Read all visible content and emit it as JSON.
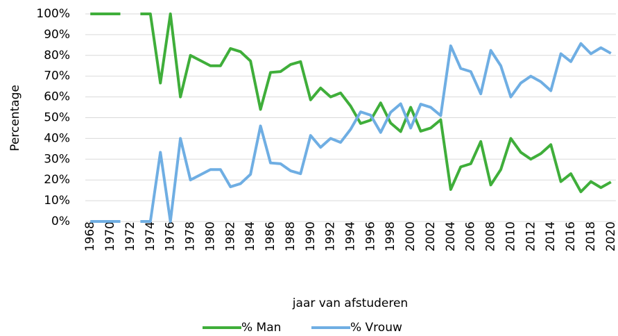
{
  "chart_data": {
    "type": "line",
    "xlabel": "jaar van afstuderen",
    "ylabel": "Percentage",
    "x": [
      1968,
      1969,
      1970,
      1971,
      1972,
      1973,
      1974,
      1975,
      1976,
      1977,
      1978,
      1979,
      1980,
      1981,
      1982,
      1983,
      1984,
      1985,
      1986,
      1987,
      1988,
      1989,
      1990,
      1991,
      1992,
      1993,
      1994,
      1995,
      1996,
      1997,
      1998,
      1999,
      2000,
      2001,
      2002,
      2003,
      2004,
      2005,
      2006,
      2007,
      2008,
      2009,
      2010,
      2011,
      2012,
      2013,
      2014,
      2015,
      2016,
      2017,
      2018,
      2019,
      2020
    ],
    "series": [
      {
        "name": "% Man",
        "color": "#3fae3a",
        "values": [
          100,
          100,
          100,
          100,
          null,
          100,
          100,
          66.7,
          100,
          60,
          80,
          77.5,
          75,
          75,
          83.3,
          81.8,
          77.3,
          54,
          71.8,
          72.2,
          75.6,
          77,
          58.6,
          64.3,
          60,
          61.9,
          55.6,
          47.2,
          48.8,
          57.1,
          47.4,
          43.3,
          55,
          43.5,
          45,
          49,
          15.4,
          26.3,
          27.8,
          38.5,
          17.6,
          25,
          40,
          33.3,
          30,
          32.7,
          37,
          19.2,
          23,
          14.3,
          19.2,
          16.3,
          19
        ]
      },
      {
        "name": "% Vrouw",
        "color": "#6faee3",
        "values": [
          0,
          0,
          0,
          0,
          null,
          0,
          0,
          33.3,
          0,
          40,
          20,
          22.5,
          25,
          25,
          16.7,
          18.2,
          22.7,
          46,
          28.2,
          27.8,
          24.4,
          23,
          41.4,
          35.7,
          40,
          38.1,
          44.4,
          52.8,
          51.2,
          42.9,
          52.6,
          56.7,
          45,
          56.5,
          55,
          51,
          84.6,
          73.7,
          72.2,
          61.5,
          82.4,
          75,
          60,
          66.7,
          70,
          67.3,
          63,
          80.8,
          77,
          85.7,
          80.8,
          83.7,
          81
        ]
      }
    ],
    "xlim": [
      1967.5,
      2020.5
    ],
    "xticks": [
      1968,
      1970,
      1972,
      1974,
      1976,
      1978,
      1980,
      1982,
      1984,
      1986,
      1988,
      1990,
      1992,
      1994,
      1996,
      1998,
      2000,
      2002,
      2004,
      2006,
      2008,
      2010,
      2012,
      2014,
      2016,
      2018,
      2020
    ],
    "ylim": [
      0,
      100
    ],
    "yticks": [
      {
        "value": 0,
        "label": "0%"
      },
      {
        "value": 10,
        "label": "10%"
      },
      {
        "value": 20,
        "label": "20%"
      },
      {
        "value": 30,
        "label": "30%"
      },
      {
        "value": 40,
        "label": "40%"
      },
      {
        "value": 50,
        "label": "50%"
      },
      {
        "value": 60,
        "label": "60%"
      },
      {
        "value": 70,
        "label": "70%"
      },
      {
        "value": 80,
        "label": "80%"
      },
      {
        "value": 90,
        "label": "90%"
      },
      {
        "value": 100,
        "label": "100%"
      }
    ],
    "grid": true,
    "legend": "bottom"
  }
}
